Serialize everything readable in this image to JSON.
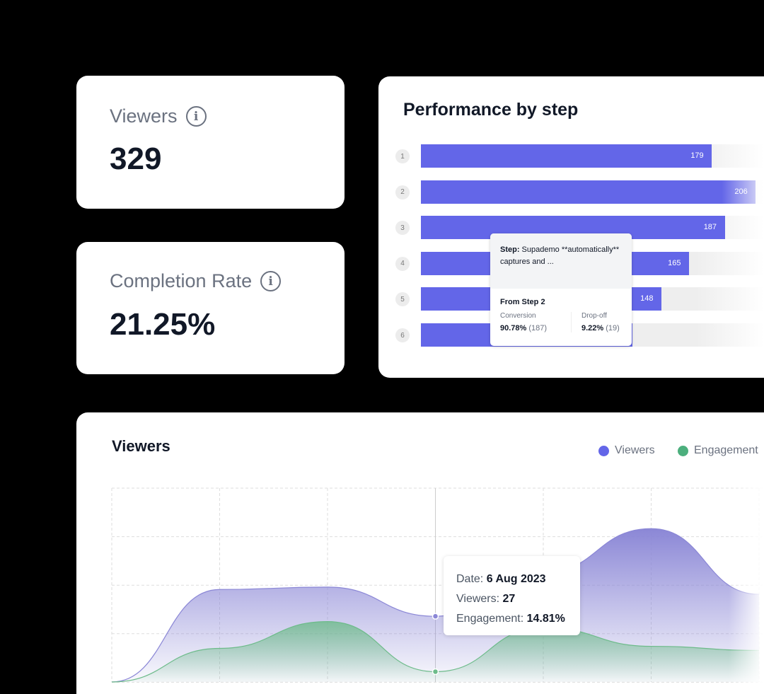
{
  "stats": [
    {
      "label": "Viewers",
      "value": "329",
      "icon": "info-icon"
    },
    {
      "label": "Completion Rate",
      "value": "21.25%",
      "icon": "info-icon"
    }
  ],
  "performance": {
    "title": "Performance by step",
    "bar_color": "#6366e8",
    "max_value": 235,
    "steps": [
      {
        "n": "1",
        "value": 179,
        "label": "179"
      },
      {
        "n": "2",
        "value": 206,
        "label": "206"
      },
      {
        "n": "3",
        "value": 187,
        "label": "187"
      },
      {
        "n": "4",
        "value": 165,
        "label": "165"
      },
      {
        "n": "5",
        "value": 148,
        "label": "148"
      },
      {
        "n": "6",
        "value": 130,
        "label": ""
      }
    ],
    "tooltip": {
      "step_label": "Step:",
      "step_text": " Supademo **automatically** captures and ...",
      "from": "From Step 2",
      "conversion_label": "Conversion",
      "conversion_value": "90.78%",
      "conversion_count": " (187)",
      "dropoff_label": "Drop-off",
      "dropoff_value": "9.22%",
      "dropoff_count": " (19)"
    }
  },
  "chart_data": {
    "type": "area",
    "title": "Viewers",
    "legend": [
      {
        "name": "Viewers",
        "color": "#6366e8"
      },
      {
        "name": "Engagement",
        "color": "#4caf7d"
      }
    ],
    "x": [
      0,
      1,
      2,
      3,
      4,
      5,
      6
    ],
    "series": [
      {
        "name": "Viewers",
        "values": [
          0,
          38,
          39,
          27,
          45,
          63,
          36
        ]
      },
      {
        "name": "Engagement",
        "values": [
          0,
          49,
          88,
          15,
          79,
          52,
          46
        ]
      }
    ],
    "grid": true,
    "tooltip": {
      "date_label": "Date: ",
      "date": "6 Aug 2023",
      "viewers_label": "Viewers: ",
      "viewers": "27",
      "engagement_label": "Engagement: ",
      "engagement": "14.81%"
    }
  }
}
